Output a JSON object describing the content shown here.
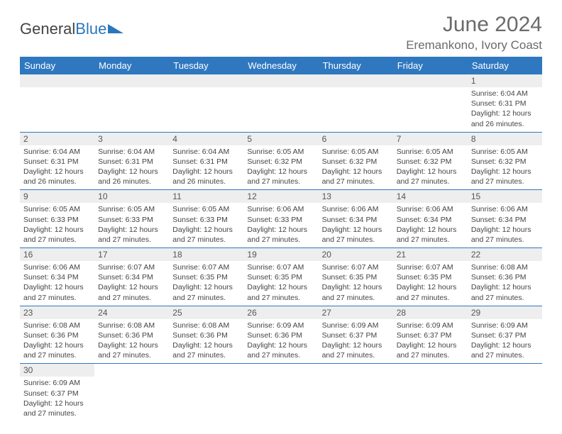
{
  "logo": {
    "text1": "General",
    "text2": "Blue",
    "tri_color": "#2a77bb"
  },
  "title": "June 2024",
  "location": "Eremankono, Ivory Coast",
  "colors": {
    "header_bg": "#2f78c0",
    "header_fg": "#ffffff",
    "daynum_bg": "#eeeeee",
    "rule": "#2f78c0",
    "text": "#444444",
    "title_fg": "#6b6b6b"
  },
  "weekdays": [
    "Sunday",
    "Monday",
    "Tuesday",
    "Wednesday",
    "Thursday",
    "Friday",
    "Saturday"
  ],
  "weeks": [
    [
      null,
      null,
      null,
      null,
      null,
      null,
      {
        "n": "1",
        "sr": "Sunrise: 6:04 AM",
        "ss": "Sunset: 6:31 PM",
        "dl": "Daylight: 12 hours and 26 minutes."
      }
    ],
    [
      {
        "n": "2",
        "sr": "Sunrise: 6:04 AM",
        "ss": "Sunset: 6:31 PM",
        "dl": "Daylight: 12 hours and 26 minutes."
      },
      {
        "n": "3",
        "sr": "Sunrise: 6:04 AM",
        "ss": "Sunset: 6:31 PM",
        "dl": "Daylight: 12 hours and 26 minutes."
      },
      {
        "n": "4",
        "sr": "Sunrise: 6:04 AM",
        "ss": "Sunset: 6:31 PM",
        "dl": "Daylight: 12 hours and 26 minutes."
      },
      {
        "n": "5",
        "sr": "Sunrise: 6:05 AM",
        "ss": "Sunset: 6:32 PM",
        "dl": "Daylight: 12 hours and 27 minutes."
      },
      {
        "n": "6",
        "sr": "Sunrise: 6:05 AM",
        "ss": "Sunset: 6:32 PM",
        "dl": "Daylight: 12 hours and 27 minutes."
      },
      {
        "n": "7",
        "sr": "Sunrise: 6:05 AM",
        "ss": "Sunset: 6:32 PM",
        "dl": "Daylight: 12 hours and 27 minutes."
      },
      {
        "n": "8",
        "sr": "Sunrise: 6:05 AM",
        "ss": "Sunset: 6:32 PM",
        "dl": "Daylight: 12 hours and 27 minutes."
      }
    ],
    [
      {
        "n": "9",
        "sr": "Sunrise: 6:05 AM",
        "ss": "Sunset: 6:33 PM",
        "dl": "Daylight: 12 hours and 27 minutes."
      },
      {
        "n": "10",
        "sr": "Sunrise: 6:05 AM",
        "ss": "Sunset: 6:33 PM",
        "dl": "Daylight: 12 hours and 27 minutes."
      },
      {
        "n": "11",
        "sr": "Sunrise: 6:05 AM",
        "ss": "Sunset: 6:33 PM",
        "dl": "Daylight: 12 hours and 27 minutes."
      },
      {
        "n": "12",
        "sr": "Sunrise: 6:06 AM",
        "ss": "Sunset: 6:33 PM",
        "dl": "Daylight: 12 hours and 27 minutes."
      },
      {
        "n": "13",
        "sr": "Sunrise: 6:06 AM",
        "ss": "Sunset: 6:34 PM",
        "dl": "Daylight: 12 hours and 27 minutes."
      },
      {
        "n": "14",
        "sr": "Sunrise: 6:06 AM",
        "ss": "Sunset: 6:34 PM",
        "dl": "Daylight: 12 hours and 27 minutes."
      },
      {
        "n": "15",
        "sr": "Sunrise: 6:06 AM",
        "ss": "Sunset: 6:34 PM",
        "dl": "Daylight: 12 hours and 27 minutes."
      }
    ],
    [
      {
        "n": "16",
        "sr": "Sunrise: 6:06 AM",
        "ss": "Sunset: 6:34 PM",
        "dl": "Daylight: 12 hours and 27 minutes."
      },
      {
        "n": "17",
        "sr": "Sunrise: 6:07 AM",
        "ss": "Sunset: 6:34 PM",
        "dl": "Daylight: 12 hours and 27 minutes."
      },
      {
        "n": "18",
        "sr": "Sunrise: 6:07 AM",
        "ss": "Sunset: 6:35 PM",
        "dl": "Daylight: 12 hours and 27 minutes."
      },
      {
        "n": "19",
        "sr": "Sunrise: 6:07 AM",
        "ss": "Sunset: 6:35 PM",
        "dl": "Daylight: 12 hours and 27 minutes."
      },
      {
        "n": "20",
        "sr": "Sunrise: 6:07 AM",
        "ss": "Sunset: 6:35 PM",
        "dl": "Daylight: 12 hours and 27 minutes."
      },
      {
        "n": "21",
        "sr": "Sunrise: 6:07 AM",
        "ss": "Sunset: 6:35 PM",
        "dl": "Daylight: 12 hours and 27 minutes."
      },
      {
        "n": "22",
        "sr": "Sunrise: 6:08 AM",
        "ss": "Sunset: 6:36 PM",
        "dl": "Daylight: 12 hours and 27 minutes."
      }
    ],
    [
      {
        "n": "23",
        "sr": "Sunrise: 6:08 AM",
        "ss": "Sunset: 6:36 PM",
        "dl": "Daylight: 12 hours and 27 minutes."
      },
      {
        "n": "24",
        "sr": "Sunrise: 6:08 AM",
        "ss": "Sunset: 6:36 PM",
        "dl": "Daylight: 12 hours and 27 minutes."
      },
      {
        "n": "25",
        "sr": "Sunrise: 6:08 AM",
        "ss": "Sunset: 6:36 PM",
        "dl": "Daylight: 12 hours and 27 minutes."
      },
      {
        "n": "26",
        "sr": "Sunrise: 6:09 AM",
        "ss": "Sunset: 6:36 PM",
        "dl": "Daylight: 12 hours and 27 minutes."
      },
      {
        "n": "27",
        "sr": "Sunrise: 6:09 AM",
        "ss": "Sunset: 6:37 PM",
        "dl": "Daylight: 12 hours and 27 minutes."
      },
      {
        "n": "28",
        "sr": "Sunrise: 6:09 AM",
        "ss": "Sunset: 6:37 PM",
        "dl": "Daylight: 12 hours and 27 minutes."
      },
      {
        "n": "29",
        "sr": "Sunrise: 6:09 AM",
        "ss": "Sunset: 6:37 PM",
        "dl": "Daylight: 12 hours and 27 minutes."
      }
    ],
    [
      {
        "n": "30",
        "sr": "Sunrise: 6:09 AM",
        "ss": "Sunset: 6:37 PM",
        "dl": "Daylight: 12 hours and 27 minutes."
      },
      null,
      null,
      null,
      null,
      null,
      null
    ]
  ]
}
